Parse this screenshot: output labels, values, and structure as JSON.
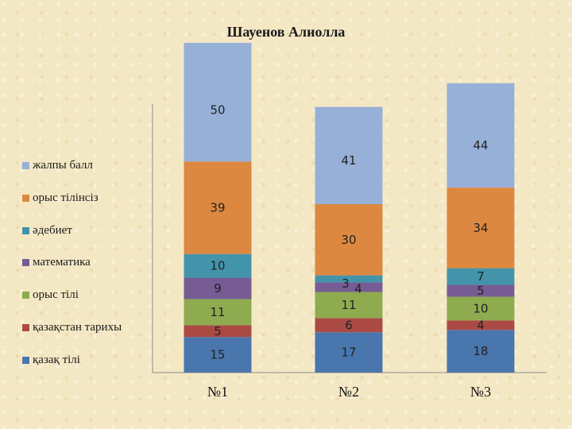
{
  "chart_data": {
    "type": "bar",
    "stacked": true,
    "title": "Шауенов Алиолла",
    "xlabel": "",
    "ylabel": "",
    "categories": [
      "№1",
      "№2",
      "№3"
    ],
    "series": [
      {
        "name": "қазақ тілі",
        "color": "#4a76ae",
        "values": [
          15,
          17,
          18
        ]
      },
      {
        "name": "қазақстан тарихы",
        "color": "#ab4a45",
        "values": [
          5,
          6,
          4
        ]
      },
      {
        "name": "орыс тілі",
        "color": "#8eab50",
        "values": [
          11,
          11,
          10
        ]
      },
      {
        "name": "математика",
        "color": "#775c94",
        "values": [
          9,
          4,
          5
        ]
      },
      {
        "name": "әдебиет",
        "color": "#4394ab",
        "values": [
          10,
          3,
          7
        ]
      },
      {
        "name": "орыс тілінсіз",
        "color": "#dc8840",
        "values": [
          39,
          30,
          34
        ]
      },
      {
        "name": "жалпы балл",
        "color": "#97b0d8",
        "values": [
          50,
          41,
          44
        ]
      }
    ],
    "legend_position": "left",
    "grid": false,
    "ylim": [
      0,
      140
    ]
  }
}
